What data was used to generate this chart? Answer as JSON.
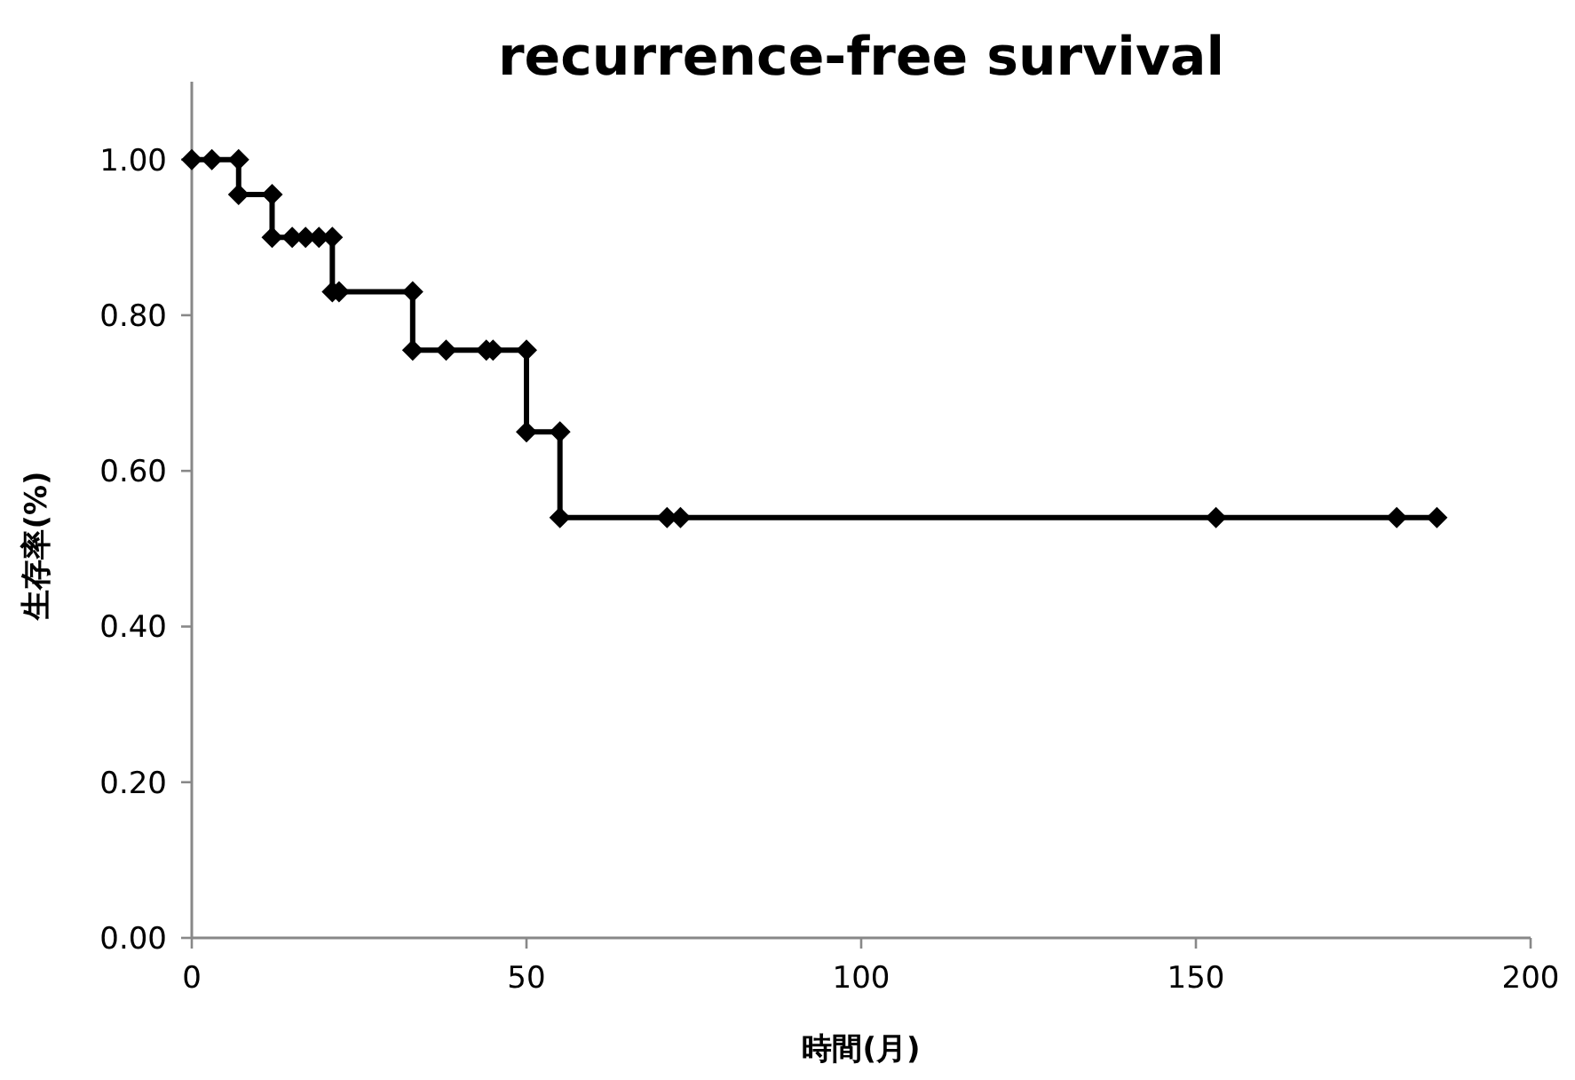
{
  "chart_data": {
    "type": "line",
    "title": "recurrence-free survival",
    "xlabel": "時間(月)",
    "ylabel": "生存率(%)",
    "xlim": [
      0,
      200
    ],
    "ylim": [
      0,
      1.1
    ],
    "xticks": [
      0,
      50,
      100,
      150,
      200
    ],
    "yticks": [
      {
        "value": 0,
        "label": "0.00"
      },
      {
        "value": 0.2,
        "label": "0.20"
      },
      {
        "value": 0.4,
        "label": "0.40"
      },
      {
        "value": 0.6,
        "label": "0.60"
      },
      {
        "value": 0.8,
        "label": "0.80"
      },
      {
        "value": 1.0,
        "label": "1.00"
      }
    ],
    "grid": false,
    "marker": "diamond",
    "line_style": "solid",
    "series": [
      {
        "color": "#000000",
        "x": [
          0,
          3,
          7,
          7,
          12,
          12,
          15,
          17,
          19,
          21,
          21,
          22,
          33,
          33,
          38,
          44,
          45,
          50,
          50,
          55,
          55,
          71,
          73,
          153,
          180,
          186
        ],
        "values": [
          1.0,
          1.0,
          1.0,
          0.955,
          0.955,
          0.9,
          0.9,
          0.9,
          0.9,
          0.9,
          0.83,
          0.83,
          0.83,
          0.755,
          0.755,
          0.755,
          0.755,
          0.755,
          0.65,
          0.65,
          0.54,
          0.54,
          0.54,
          0.54,
          0.54,
          0.54
        ]
      }
    ]
  }
}
